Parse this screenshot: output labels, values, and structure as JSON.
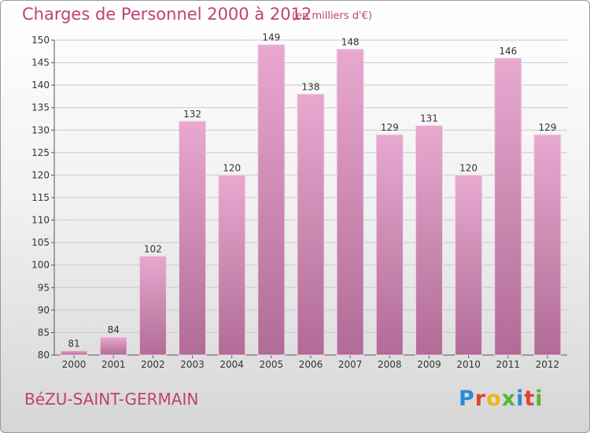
{
  "header": {
    "title": "Charges de Personnel 2000 à 2012",
    "unit": "(en milliers d'€)"
  },
  "footer": {
    "commune": "BéZU-SAINT-GERMAIN",
    "logo_letters": [
      "P",
      "r",
      "o",
      "x",
      "i",
      "t",
      "i"
    ],
    "logo_colors": [
      "#2f8ad6",
      "#e0422f",
      "#f0b21e",
      "#56b33a",
      "#2f8ad6",
      "#e0422f",
      "#56b33a"
    ]
  },
  "colors": {
    "bar_top": "#e8a8d0",
    "bar_bottom": "#b06c96",
    "title": "#c0407a"
  },
  "chart_data": {
    "type": "bar",
    "title": "Charges de Personnel 2000 à 2012",
    "xlabel": "",
    "ylabel": "",
    "categories": [
      "2000",
      "2001",
      "2002",
      "2003",
      "2004",
      "2005",
      "2006",
      "2007",
      "2008",
      "2009",
      "2010",
      "2011",
      "2012"
    ],
    "values": [
      81,
      84,
      102,
      132,
      120,
      149,
      138,
      148,
      129,
      131,
      120,
      146,
      129
    ],
    "ylim": [
      80,
      150
    ],
    "yticks": [
      80,
      85,
      90,
      95,
      100,
      105,
      110,
      115,
      120,
      125,
      130,
      135,
      140,
      145,
      150
    ],
    "grid": true
  }
}
